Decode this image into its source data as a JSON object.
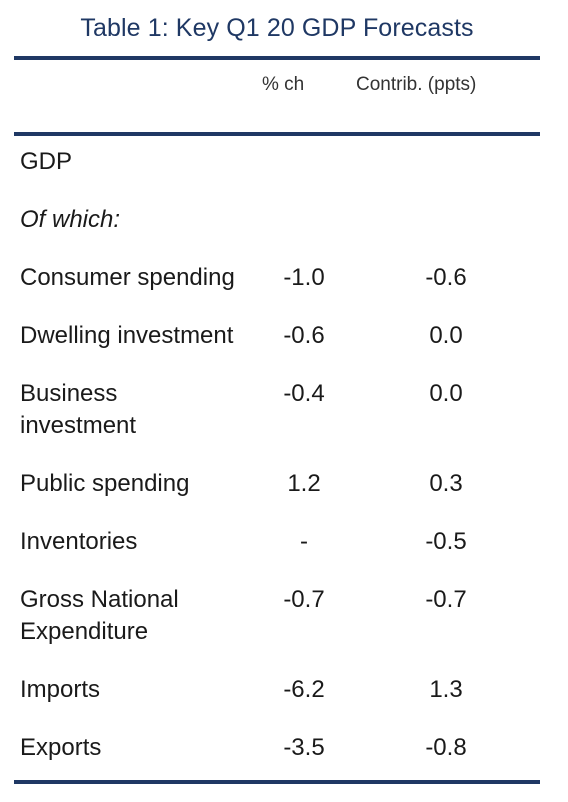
{
  "title": "Table 1: Key Q1 20 GDP Forecasts",
  "columns": {
    "pct": "% ch",
    "contrib": "Contrib. (ppts)"
  },
  "rows": [
    {
      "label": "GDP",
      "pct": "",
      "contrib": ""
    },
    {
      "label": "Of which:",
      "pct": "",
      "contrib": ""
    },
    {
      "label": "Consumer spending",
      "pct": "-1.0",
      "contrib": "-0.6"
    },
    {
      "label": "Dwelling investment",
      "pct": "-0.6",
      "contrib": "0.0"
    },
    {
      "label": "Business investment",
      "pct": "-0.4",
      "contrib": "0.0"
    },
    {
      "label": "Public spending",
      "pct": "1.2",
      "contrib": "0.3"
    },
    {
      "label": "Inventories",
      "pct": "-",
      "contrib": "-0.5"
    },
    {
      "label": "Gross National Expenditure",
      "pct": "-0.7",
      "contrib": "-0.7"
    },
    {
      "label": "Imports",
      "pct": "-6.2",
      "contrib": "1.3"
    },
    {
      "label": "Exports",
      "pct": "-3.5",
      "contrib": "-0.8"
    }
  ],
  "colors": {
    "accent": "#1f3864"
  }
}
